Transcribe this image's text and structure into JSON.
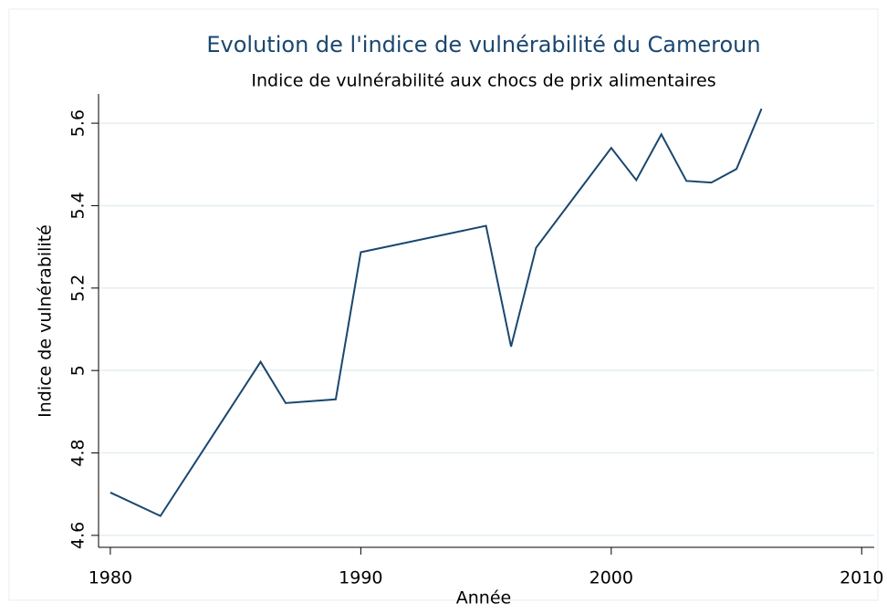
{
  "chart_data": {
    "type": "line",
    "title": "Evolution de l'indice de vulnérabilité du Cameroun",
    "subtitle": "Indice de vulnérabilité aux chocs de prix alimentaires",
    "x_label": "Année",
    "y_label": "Indice de vulnérabilité",
    "x": [
      1980,
      1982,
      1986,
      1987,
      1989,
      1990,
      1995,
      1996,
      1997,
      2000,
      2001,
      2002,
      2003,
      2004,
      2005,
      2006
    ],
    "series": [
      {
        "name": "Indice de vulnérabilité",
        "color": "#1a476f",
        "values": [
          4.704,
          4.647,
          5.021,
          4.921,
          4.93,
          5.287,
          5.351,
          5.058,
          5.298,
          5.54,
          5.462,
          5.573,
          5.46,
          5.456,
          5.489,
          5.635
        ]
      }
    ],
    "xlim": [
      1979.53,
      2010.5
    ],
    "xticks": [
      1980,
      1990,
      2000,
      2010
    ],
    "ylim": [
      4.571,
      5.671
    ],
    "yticks": [
      4.6,
      4.8,
      5,
      5.2,
      5.4,
      5.6
    ],
    "grid": true
  }
}
